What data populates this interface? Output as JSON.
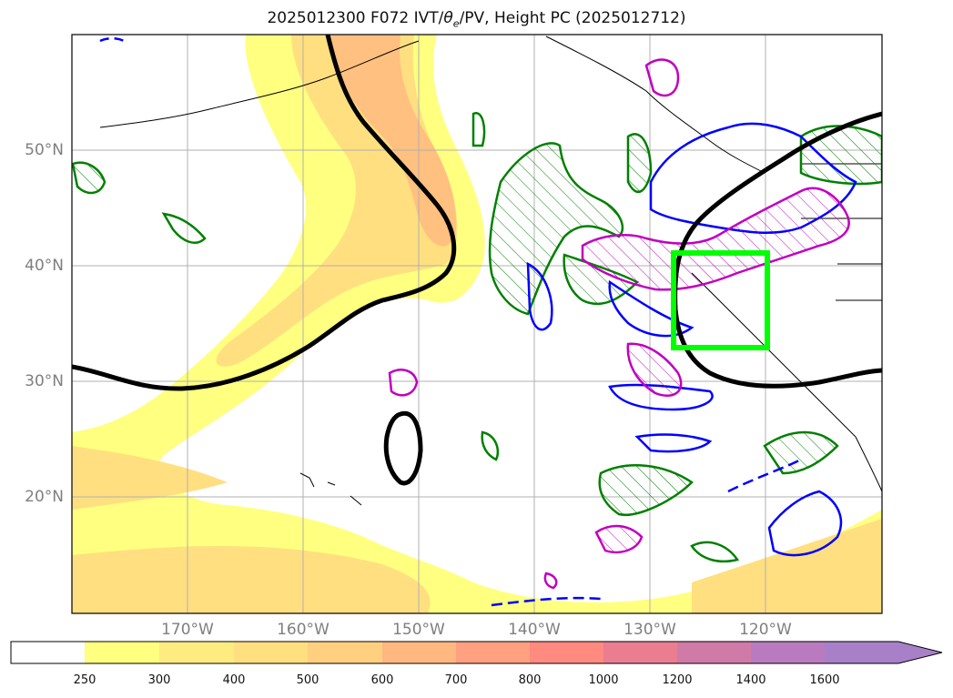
{
  "title_prefix": "2025012300 F072 IVT/",
  "title_theta": "θ",
  "title_sub": "e",
  "title_suffix": "/PV, Height PC (2025012712)",
  "lat_labels": [
    "50°N",
    "40°N",
    "30°N",
    "20°N"
  ],
  "lon_labels": [
    "170°W",
    "160°W",
    "150°W",
    "140°W",
    "130°W",
    "120°W"
  ],
  "colorbar": {
    "labels": [
      "250",
      "300",
      "400",
      "500",
      "600",
      "700",
      "800",
      "1000",
      "1200",
      "1400",
      "1600"
    ],
    "colors": [
      "#ffffff",
      "#ffff80",
      "#ffec80",
      "#ffdf80",
      "#ffd080",
      "#ffb880",
      "#ffa080",
      "#ff8a80",
      "#ea7d90",
      "#d07aa8",
      "#b97ac0",
      "#a880c8"
    ]
  },
  "colors": {
    "ivt_low": "#ffff80",
    "ivt_mid": "#ffdf80",
    "ivt_high": "#ffc080",
    "height_contour": "#000000",
    "pv": "#0000ff",
    "theta_e": "#c000c0",
    "green_contour": "#008000",
    "target_box": "#00ff00",
    "grid": "#b0b0b0"
  }
}
